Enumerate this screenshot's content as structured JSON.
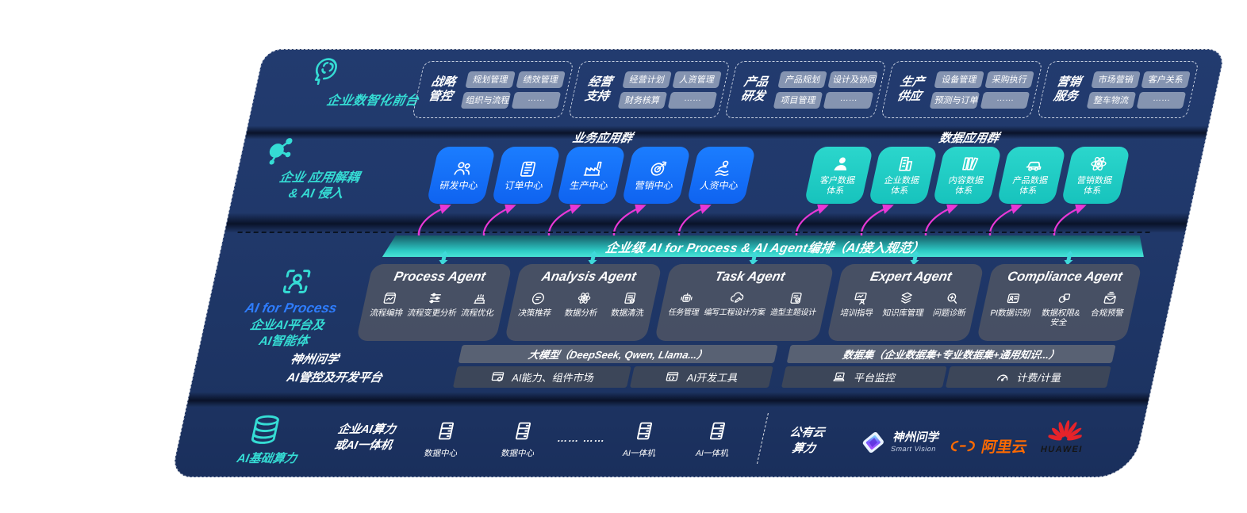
{
  "front_office": {
    "title": "企业数智化前台",
    "groups": [
      {
        "label": "战略\n管控",
        "pills": [
          "规划管理",
          "绩效管理",
          "组织与流程",
          "……"
        ]
      },
      {
        "label": "经营\n支持",
        "pills": [
          "经营计划",
          "人资管理",
          "财务核算",
          "……"
        ]
      },
      {
        "label": "产品\n研发",
        "pills": [
          "产品规划",
          "设计及协同",
          "项目管理",
          "……"
        ]
      },
      {
        "label": "生产\n供应",
        "pills": [
          "设备管理",
          "采购执行",
          "预测与订单",
          "……"
        ]
      },
      {
        "label": "营销\n服务",
        "pills": [
          "市场营销",
          "客户关系",
          "整车物流",
          "……"
        ]
      }
    ]
  },
  "app_layer": {
    "title": "企业 应用解耦\n& AI 侵入",
    "business_title": "业务应用群",
    "business_apps": [
      {
        "label": "研发中心",
        "icon": "people"
      },
      {
        "label": "订单中心",
        "icon": "clipboard"
      },
      {
        "label": "生产中心",
        "icon": "factory"
      },
      {
        "label": "营销中心",
        "icon": "target"
      },
      {
        "label": "人资中心",
        "icon": "person-wave"
      }
    ],
    "data_title": "数据应用群",
    "data_apps": [
      {
        "label": "客户数据\n体系",
        "icon": "user-solid"
      },
      {
        "label": "企业数据\n体系",
        "icon": "building"
      },
      {
        "label": "内容数据\n体系",
        "icon": "books"
      },
      {
        "label": "产品数据\n体系",
        "icon": "car"
      },
      {
        "label": "营销数据\n体系",
        "icon": "atom"
      }
    ]
  },
  "ai_bar": {
    "title": "企业级 AI for Process & AI Agent编排（AI接入规范）"
  },
  "agent_layer": {
    "title_en": "AI for Process",
    "title_zh": "企业AI平台及\nAI智能体",
    "agents": [
      {
        "title": "Process Agent",
        "items": [
          {
            "label": "流程编排",
            "icon": "flow-box"
          },
          {
            "label": "流程变更分析",
            "icon": "sliders"
          },
          {
            "label": "流程优化",
            "icon": "optimize"
          }
        ]
      },
      {
        "title": "Analysis Agent",
        "items": [
          {
            "label": "决策推荐",
            "icon": "chat-head"
          },
          {
            "label": "数据分析",
            "icon": "atom"
          },
          {
            "label": "数据清洗",
            "icon": "clean-doc"
          }
        ]
      },
      {
        "title": "Task Agent",
        "items": [
          {
            "label": "任务管理",
            "icon": "robot"
          },
          {
            "label": "编写工程设计方案",
            "icon": "cloud-pen"
          },
          {
            "label": "造型主题设计",
            "icon": "doc-check"
          }
        ]
      },
      {
        "title": "Expert Agent",
        "items": [
          {
            "label": "培训指导",
            "icon": "training"
          },
          {
            "label": "知识库管理",
            "icon": "layers"
          },
          {
            "label": "问题诊断",
            "icon": "diagnose"
          }
        ]
      },
      {
        "title": "Compliance Agent",
        "items": [
          {
            "label": "PI数据识别",
            "icon": "id-card"
          },
          {
            "label": "数据权限&\n安全",
            "icon": "link-lock"
          },
          {
            "label": "合规预警",
            "icon": "mail-send"
          }
        ]
      }
    ]
  },
  "platform": {
    "title_line1": "神州问学",
    "title_line2": "AI管控及开发平台",
    "model_header": "大模型（DeepSeek, Qwen, Llama...）",
    "model_cells": [
      {
        "label": "AI能力、组件市场",
        "icon": "market"
      },
      {
        "label": "AI开发工具",
        "icon": "dev-tools"
      }
    ],
    "data_header": "数据集（企业数据集+专业数据集+通用知识...）",
    "data_cells": [
      {
        "label": "平台监控",
        "icon": "laptop"
      },
      {
        "label": "计费/计量",
        "icon": "gauge"
      }
    ]
  },
  "infra": {
    "title": "AI基础算力",
    "compute_label": "企业AI算力\n或AI一体机",
    "nodes": [
      {
        "label": "数据中心",
        "icon": "server"
      },
      {
        "label": "数据中心",
        "icon": "server"
      },
      {
        "label": "AI一体机",
        "icon": "server"
      },
      {
        "label": "AI一体机",
        "icon": "server"
      }
    ],
    "ellipsis": "…… ……",
    "public_cloud": "公有云\n算力",
    "logos": [
      {
        "name": "神州问学",
        "sub": "Smart Vision"
      },
      {
        "name": "阿里云"
      },
      {
        "name": "HUAWEI"
      }
    ]
  },
  "colors": {
    "accent_teal": "#35dcd4",
    "accent_blue": "#2e7dff",
    "box_blue": "#1372fb",
    "box_teal": "#21cfc6",
    "magenta_arrow": "#e838d6",
    "alibaba_orange": "#ff6a00",
    "huawei_red": "#e6232a",
    "band_navy": "#20386b"
  }
}
